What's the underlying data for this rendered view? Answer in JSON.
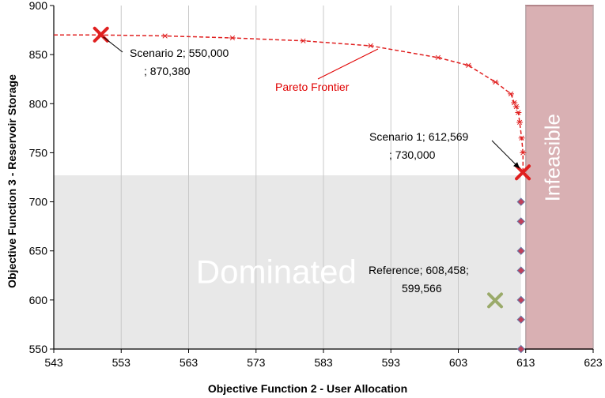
{
  "chart_data": {
    "type": "scatter",
    "title": "",
    "xlabel": "Objective Function 2 - User Allocation",
    "ylabel": "Objective Function 3 - Reservoir Storage",
    "xlim": [
      543,
      623
    ],
    "ylim": [
      550,
      900
    ],
    "x_ticks": [
      543,
      553,
      563,
      573,
      583,
      593,
      603,
      613,
      623
    ],
    "y_ticks": [
      550,
      600,
      650,
      700,
      750,
      800,
      850,
      900
    ],
    "grid": "vertical",
    "series": [
      {
        "role": "pareto-frontier",
        "color": "#e02020",
        "marker": "asterisk",
        "points": [
          [
            543,
            870
          ],
          [
            550,
            870
          ],
          [
            559.5,
            869
          ],
          [
            569.5,
            867
          ],
          [
            580,
            864
          ],
          [
            590,
            859
          ],
          [
            600,
            847
          ],
          [
            604.5,
            839
          ],
          [
            608.5,
            822
          ],
          [
            610.8,
            810
          ],
          [
            611.3,
            801
          ],
          [
            611.6,
            797
          ],
          [
            611.9,
            791
          ],
          [
            612.1,
            781
          ],
          [
            612.4,
            765
          ],
          [
            612.6,
            750
          ],
          [
            612.6,
            730
          ]
        ]
      },
      {
        "role": "dominated-points",
        "color": "#c0405a",
        "marker": "diamond",
        "points": [
          [
            612.3,
            700
          ],
          [
            612.3,
            680
          ],
          [
            612.3,
            650
          ],
          [
            612.3,
            630
          ],
          [
            612.3,
            600
          ],
          [
            612.3,
            580
          ],
          [
            612.3,
            550
          ]
        ]
      }
    ],
    "scenarios": [
      {
        "label_line1": "Scenario 2;  550,000",
        "label_line2": ";  870,380",
        "x": 550,
        "y": 870.38,
        "color": "#e02020"
      },
      {
        "label_line1": "Scenario 1;  612,569",
        "label_line2": ";  730,000",
        "x": 612.569,
        "y": 730,
        "color": "#e02020"
      }
    ],
    "reference": {
      "label_line1": "Reference;  608,458;",
      "label_line2": "599,566",
      "x": 608.458,
      "y": 599.566,
      "color": "#9aaa6a"
    },
    "pareto_label": "Pareto Frontier",
    "regions": {
      "dominated": {
        "label": "Dominated",
        "x_range": [
          543,
          612.3
        ],
        "y_range": [
          550,
          727
        ],
        "color": "#e8e8e8"
      },
      "infeasible": {
        "label": "Infeasible",
        "x_range": [
          613,
          623
        ],
        "y_range": [
          550,
          900
        ],
        "color": "#d9b0b3"
      }
    }
  }
}
